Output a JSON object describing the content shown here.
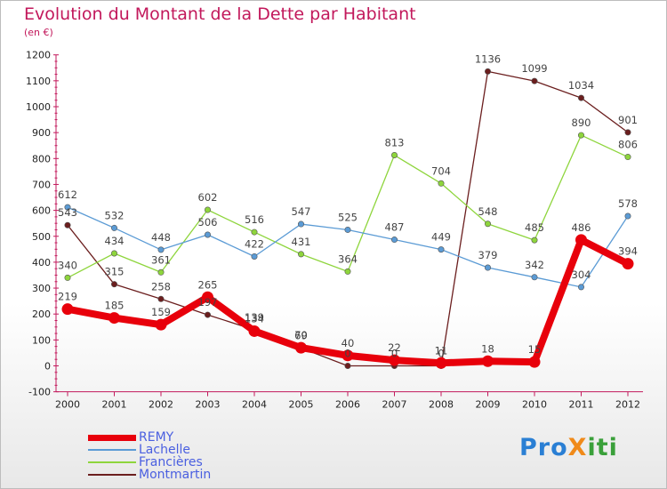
{
  "title": "Evolution du Montant de la Dette par Habitant",
  "subtitle": "(en €)",
  "brand": {
    "text": "ProXiti",
    "parts": [
      "Pro",
      "X",
      "iti"
    ]
  },
  "chart_data": {
    "type": "line",
    "title": "Evolution du Montant de la Dette par Habitant",
    "ylabel": "(en €)",
    "x": [
      "2000",
      "2001",
      "2002",
      "2003",
      "2004",
      "2005",
      "2006",
      "2007",
      "2008",
      "2009",
      "2010",
      "2011",
      "2012"
    ],
    "ylim": [
      -100,
      1200
    ],
    "yticks": [
      -100,
      0,
      100,
      200,
      300,
      400,
      500,
      600,
      700,
      800,
      900,
      1000,
      1100,
      1200
    ],
    "grid": false,
    "legend": "bottom-left",
    "series": [
      {
        "name": "REMY",
        "color": "#e8000b",
        "values": [
          219,
          185,
          159,
          265,
          134,
          70,
          40,
          22,
          11,
          18,
          15,
          486,
          394
        ]
      },
      {
        "name": "Lachelle",
        "color": "#5b9bd5",
        "values": [
          612,
          532,
          448,
          506,
          422,
          547,
          525,
          487,
          449,
          379,
          342,
          304,
          578
        ]
      },
      {
        "name": "Francières",
        "color": "#8ed53c",
        "values": [
          340,
          434,
          361,
          602,
          516,
          431,
          364,
          813,
          704,
          548,
          485,
          890,
          806
        ]
      },
      {
        "name": "Montmartin",
        "color": "#6b1e1e",
        "values": [
          543,
          315,
          258,
          197,
          139,
          69,
          0,
          0,
          0,
          1136,
          1099,
          1034,
          901
        ]
      }
    ]
  }
}
